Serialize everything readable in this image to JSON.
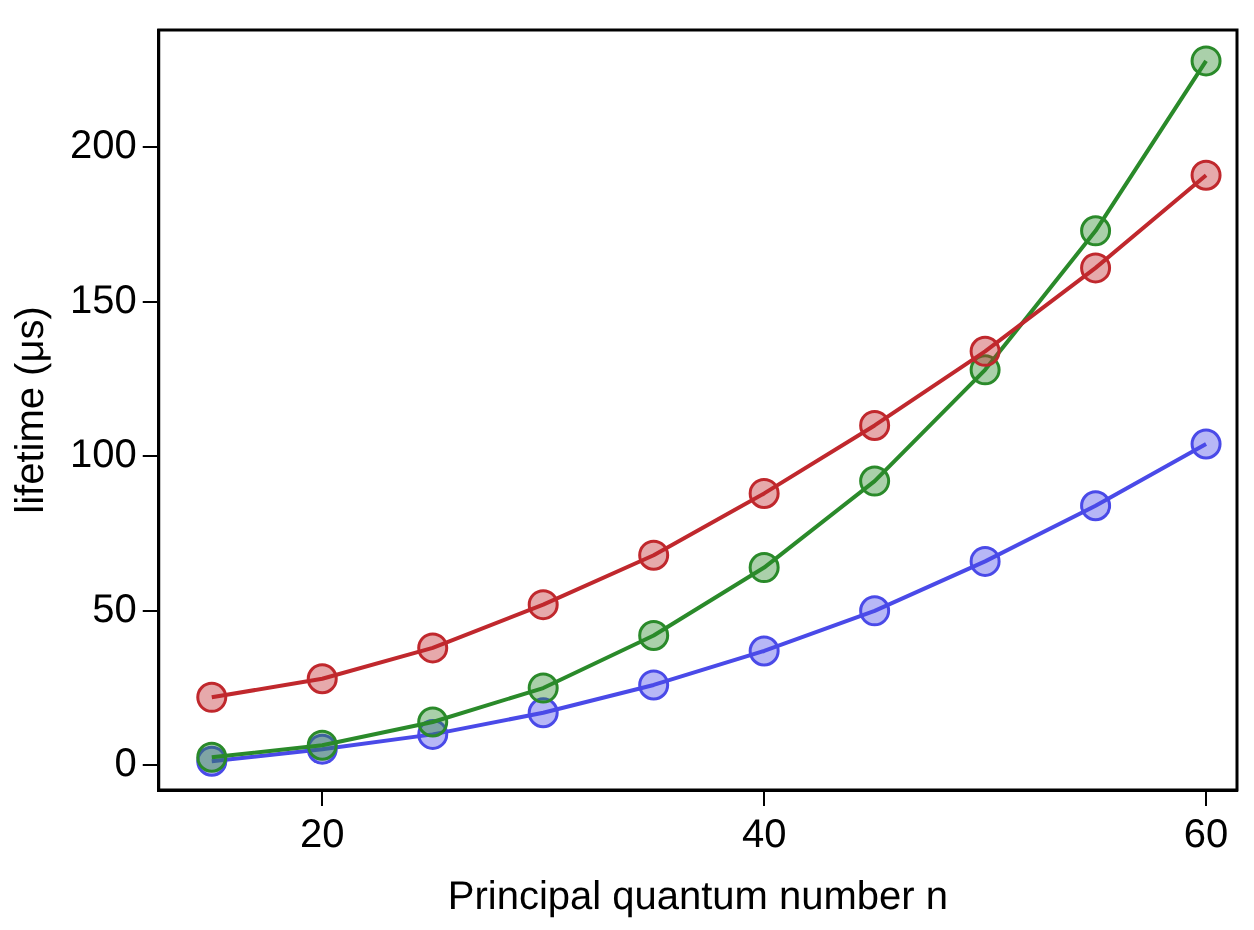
{
  "chart_data": {
    "type": "line",
    "xlabel": "Principal quantum number n",
    "ylabel": "lifetime (μs)",
    "x": [
      15,
      20,
      25,
      30,
      35,
      40,
      45,
      50,
      55,
      60
    ],
    "series": [
      {
        "color": "#c0282d",
        "values": [
          22,
          28,
          38,
          52,
          68,
          88,
          110,
          134,
          161,
          191
        ]
      },
      {
        "color": "#2a8a2a",
        "values": [
          2.6,
          6.5,
          14,
          25,
          42,
          64,
          92,
          128,
          173,
          228
        ]
      },
      {
        "color": "#4a4ae8",
        "values": [
          1.3,
          5.2,
          10,
          17,
          26,
          37,
          50,
          66,
          84,
          104
        ]
      }
    ],
    "xlim": [
      12.6,
      61.4
    ],
    "xticks": [
      20,
      40,
      60
    ],
    "ylim": [
      -8,
      238
    ],
    "yticks": [
      0,
      50,
      100,
      150,
      200
    ],
    "grid": false,
    "legend": false,
    "marker": "circle",
    "line_style": "solid"
  }
}
